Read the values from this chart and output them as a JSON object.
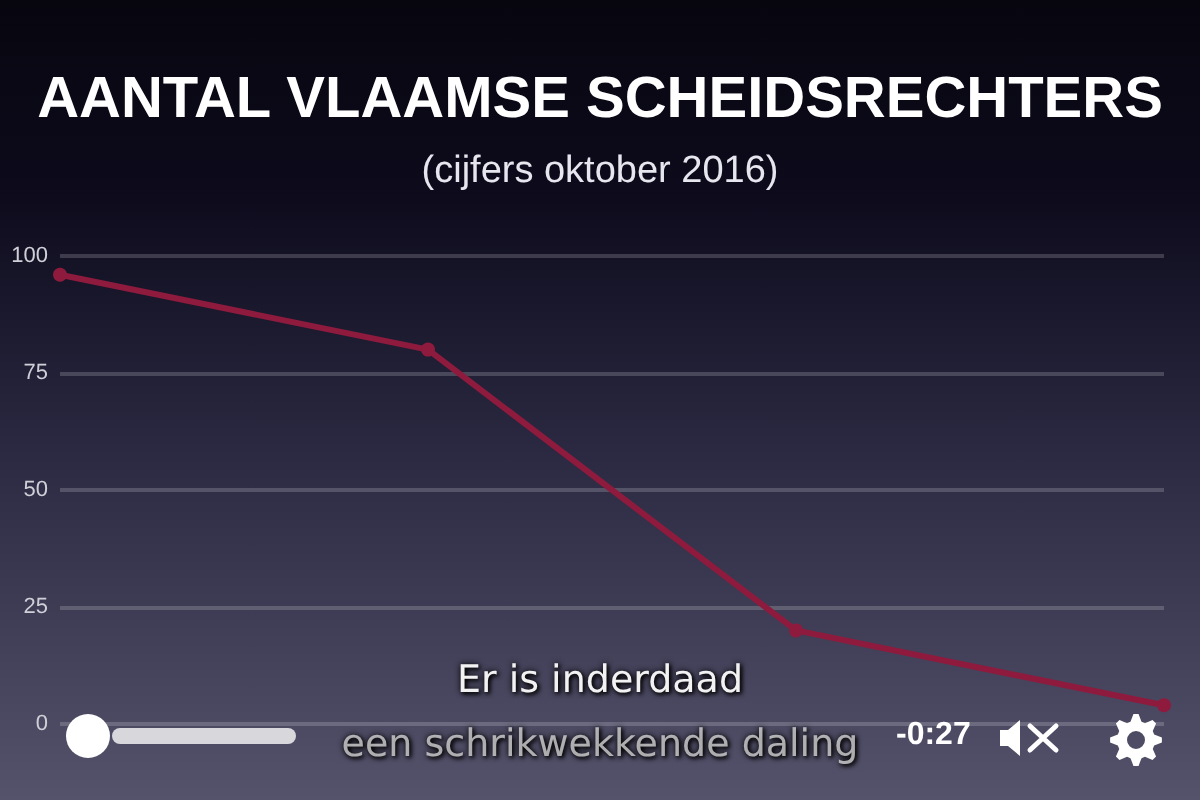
{
  "chart_data": {
    "type": "line",
    "title": "AANTAL VLAAMSE SCHEIDSRECHTERS",
    "subtitle": "(cijfers oktober 2016)",
    "categories": [
      null,
      null,
      null,
      null
    ],
    "series": [
      {
        "color": "#8e1b3d",
        "values": [
          96,
          80,
          20,
          4
        ]
      }
    ],
    "ylim": [
      0,
      100
    ],
    "yticks": [
      0,
      25,
      50,
      75,
      100
    ],
    "grid": "y",
    "marker": "circle",
    "line_style": "solid",
    "tick_labels": "y",
    "annotations": [
      "Er is inderdaad",
      "een schrikwekkende daling",
      "-0:27"
    ]
  }
}
